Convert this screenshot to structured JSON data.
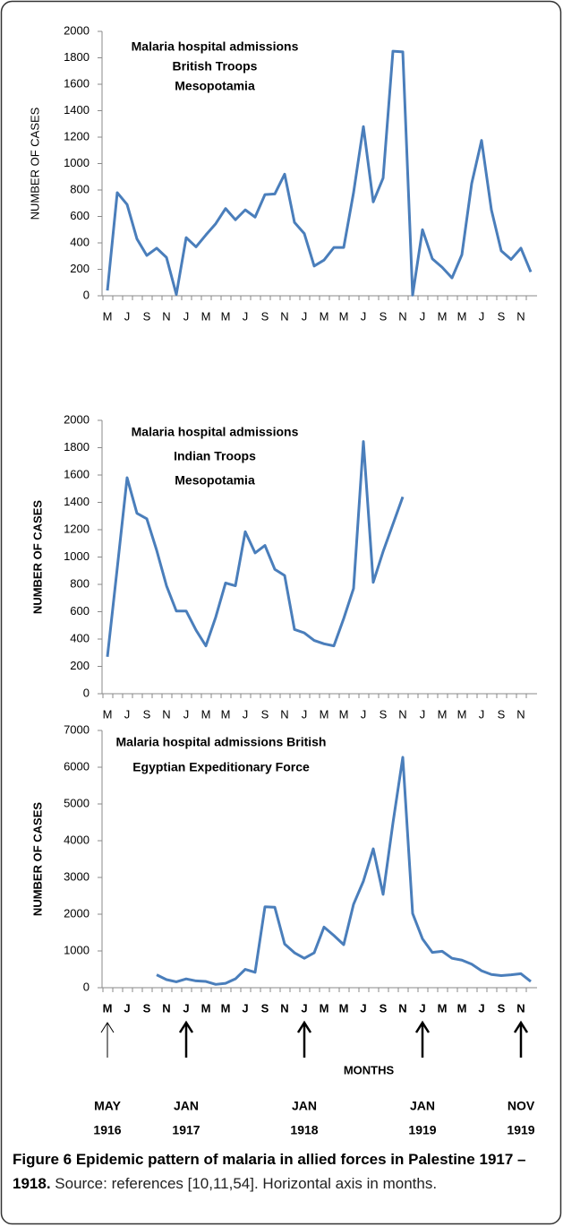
{
  "chart_data": [
    {
      "type": "line",
      "title": [
        "Malaria hospital admissions",
        "British Troops",
        "Mesopotamia"
      ],
      "y_label": "NUMBER OF CASES",
      "categories": [
        "M",
        null,
        "J",
        null,
        "S",
        null,
        "N",
        null,
        "J",
        null,
        "M",
        null,
        "M",
        null,
        "J",
        null,
        "S",
        null,
        "N",
        null,
        "J",
        null,
        "M",
        null,
        "M",
        null,
        "J",
        null,
        "S",
        null,
        "N",
        null,
        "J",
        null,
        "M",
        null,
        "M",
        null,
        "J",
        null,
        "S",
        null,
        "N",
        null
      ],
      "series": [
        {
          "name": "British Troops",
          "color": "#4a7ebb",
          "values": [
            40,
            780,
            690,
            430,
            305,
            360,
            290,
            10,
            440,
            370,
            460,
            545,
            660,
            575,
            650,
            595,
            765,
            770,
            920,
            555,
            470,
            225,
            270,
            365,
            365,
            780,
            1280,
            710,
            890,
            1850,
            1845,
            5,
            500,
            280,
            215,
            135,
            310,
            850,
            1175,
            650,
            340,
            275,
            360,
            180
          ]
        }
      ],
      "ylim": [
        0,
        2000
      ],
      "yticks": [
        0,
        200,
        400,
        600,
        800,
        1000,
        1200,
        1400,
        1600,
        1800,
        2000
      ],
      "grid": false
    },
    {
      "type": "line",
      "title": [
        "Malaria hospital admissions",
        "Indian Troops",
        "Mesopotamia"
      ],
      "y_label": "NUMBER OF CASES",
      "categories": [
        "M",
        null,
        "J",
        null,
        "S",
        null,
        "N",
        null,
        "J",
        null,
        "M",
        null,
        "M",
        null,
        "J",
        null,
        "S",
        null,
        "N",
        null,
        "J",
        null,
        "M",
        null,
        "M",
        null,
        "J",
        null,
        "S",
        null,
        "N",
        null,
        "J",
        null,
        "M",
        null,
        "M",
        null,
        "J",
        null,
        "S",
        null,
        "N",
        null
      ],
      "series": [
        {
          "name": "Indian Troops",
          "color": "#4a7ebb",
          "values": [
            270,
            920,
            1580,
            1320,
            1280,
            1050,
            790,
            605,
            605,
            465,
            350,
            560,
            810,
            790,
            1185,
            1030,
            1085,
            910,
            865,
            470,
            445,
            390,
            365,
            350,
            550,
            770,
            1845,
            815,
            1040,
            1240,
            1440,
            null,
            null,
            null,
            null,
            null,
            null,
            null,
            null,
            null,
            null,
            null,
            null,
            null
          ]
        }
      ],
      "ylim": [
        0,
        2000
      ],
      "yticks": [
        0,
        200,
        400,
        600,
        800,
        1000,
        1200,
        1400,
        1600,
        1800,
        2000
      ],
      "grid": false
    },
    {
      "type": "line",
      "title": [
        "Malaria hospital admissions British",
        "Egyptian Expeditionary Force"
      ],
      "y_label": "NUMBER OF CASES",
      "x_label": "MONTHS",
      "categories": [
        "M",
        null,
        "J",
        null,
        "S",
        null,
        "N",
        null,
        "J",
        null,
        "M",
        null,
        "M",
        null,
        "J",
        null,
        "S",
        null,
        "N",
        null,
        "J",
        null,
        "M",
        null,
        "M",
        null,
        "J",
        null,
        "S",
        null,
        "N",
        null,
        "J",
        null,
        "M",
        null,
        "M",
        null,
        "J",
        null,
        "S",
        null,
        "N",
        null
      ],
      "series": [
        {
          "name": "Egyptian Expeditionary Force",
          "color": "#4a7ebb",
          "values": [
            null,
            null,
            null,
            null,
            null,
            350,
            220,
            160,
            240,
            185,
            170,
            90,
            120,
            240,
            500,
            420,
            2200,
            2190,
            1190,
            950,
            800,
            950,
            1650,
            1420,
            1170,
            2270,
            2900,
            3780,
            2540,
            4480,
            6270,
            2020,
            1330,
            960,
            990,
            800,
            750,
            640,
            460,
            360,
            330,
            350,
            380,
            170
          ]
        }
      ],
      "ylim": [
        0,
        7000
      ],
      "yticks": [
        0,
        1000,
        2000,
        3000,
        4000,
        5000,
        6000,
        7000
      ],
      "grid": false,
      "annotations": [
        {
          "x": 0,
          "text": [
            "MAY",
            "1916"
          ]
        },
        {
          "x": 8,
          "text": [
            "JAN",
            "1917"
          ]
        },
        {
          "x": 20,
          "text": [
            "JAN",
            "1918"
          ]
        },
        {
          "x": 32,
          "text": [
            "JAN",
            "1919"
          ]
        },
        {
          "x": 42,
          "text": [
            "NOV",
            "1919"
          ]
        }
      ]
    }
  ],
  "caption": {
    "bold": "Figure 6 Epidemic pattern of malaria in allied forces in Palestine 1917 – 1918.",
    "text": " Source: references [10,11,54]. Horizontal axis in months."
  }
}
